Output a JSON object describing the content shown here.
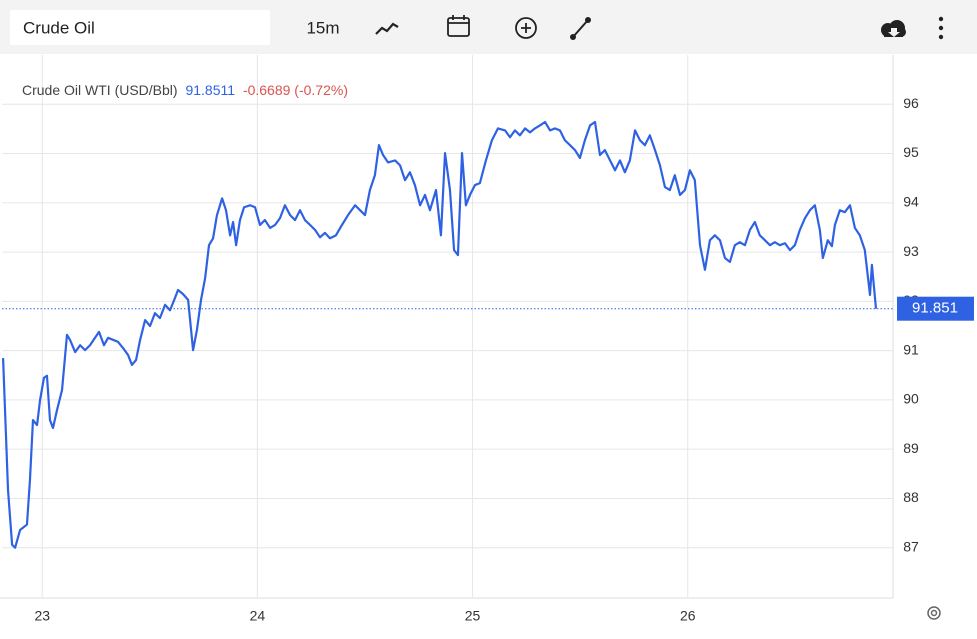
{
  "toolbar": {
    "search": "Crude Oil",
    "interval": "15m"
  },
  "chart_data": {
    "type": "line",
    "title": "Crude Oil WTI (USD/Bbl)",
    "last": 91.8511,
    "change_text": "-0.6689 (-0.72%)",
    "price_label": "91.851",
    "color": "#2f62e3",
    "grid": true,
    "xlim": [
      22.813,
      26.954
    ],
    "xticks": [
      23,
      24,
      25,
      26
    ],
    "ylim": [
      86,
      97
    ],
    "yticks": [
      87,
      88,
      89,
      90,
      91,
      92,
      93,
      94,
      95,
      96
    ],
    "x": [
      22.818,
      22.841,
      22.86,
      22.874,
      22.897,
      22.929,
      22.943,
      22.957,
      22.976,
      22.99,
      23.008,
      23.022,
      23.036,
      23.05,
      23.069,
      23.092,
      23.115,
      23.129,
      23.153,
      23.176,
      23.199,
      23.222,
      23.245,
      23.264,
      23.287,
      23.306,
      23.329,
      23.352,
      23.376,
      23.399,
      23.417,
      23.436,
      23.455,
      23.478,
      23.501,
      23.524,
      23.547,
      23.571,
      23.594,
      23.617,
      23.631,
      23.654,
      23.678,
      23.701,
      23.719,
      23.738,
      23.757,
      23.775,
      23.794,
      23.812,
      23.836,
      23.854,
      23.873,
      23.887,
      23.901,
      23.919,
      23.938,
      23.966,
      23.989,
      24.012,
      24.035,
      24.059,
      24.082,
      24.105,
      24.128,
      24.152,
      24.175,
      24.198,
      24.221,
      24.245,
      24.268,
      24.291,
      24.314,
      24.337,
      24.365,
      24.393,
      24.421,
      24.454,
      24.477,
      24.5,
      24.523,
      24.546,
      24.565,
      24.584,
      24.607,
      24.64,
      24.663,
      24.686,
      24.709,
      24.732,
      24.756,
      24.779,
      24.802,
      24.83,
      24.853,
      24.872,
      24.895,
      24.914,
      24.932,
      24.951,
      24.969,
      24.988,
      25.011,
      25.034,
      25.062,
      25.09,
      25.118,
      25.151,
      25.174,
      25.197,
      25.22,
      25.244,
      25.267,
      25.29,
      25.313,
      25.337,
      25.36,
      25.383,
      25.406,
      25.429,
      25.453,
      25.476,
      25.499,
      25.522,
      25.546,
      25.569,
      25.592,
      25.615,
      25.639,
      25.662,
      25.685,
      25.708,
      25.731,
      25.755,
      25.778,
      25.801,
      25.824,
      25.848,
      25.871,
      25.894,
      25.917,
      25.94,
      25.964,
      25.987,
      26.01,
      26.033,
      26.057,
      26.08,
      26.103,
      26.126,
      26.15,
      26.173,
      26.196,
      26.219,
      26.242,
      26.266,
      26.289,
      26.312,
      26.335,
      26.359,
      26.382,
      26.405,
      26.428,
      26.452,
      26.475,
      26.498,
      26.521,
      26.545,
      26.568,
      26.591,
      26.614,
      26.628,
      26.651,
      26.67,
      26.684,
      26.707,
      26.73,
      26.754,
      26.777,
      26.8,
      26.823,
      26.847,
      26.856,
      26.875
    ],
    "values": [
      90.85,
      88.17,
      87.06,
      87.0,
      87.36,
      87.47,
      88.38,
      89.59,
      89.49,
      90.0,
      90.45,
      90.49,
      89.59,
      89.43,
      89.8,
      90.2,
      91.32,
      91.22,
      90.97,
      91.11,
      91.01,
      91.11,
      91.26,
      91.38,
      91.11,
      91.26,
      91.22,
      91.18,
      91.05,
      90.91,
      90.71,
      90.81,
      91.22,
      91.62,
      91.5,
      91.76,
      91.66,
      91.93,
      91.82,
      92.07,
      92.23,
      92.15,
      92.03,
      91.01,
      91.42,
      92.03,
      92.47,
      93.14,
      93.28,
      93.75,
      94.09,
      93.85,
      93.34,
      93.61,
      93.14,
      93.65,
      93.91,
      93.95,
      93.91,
      93.55,
      93.65,
      93.49,
      93.55,
      93.69,
      93.95,
      93.75,
      93.65,
      93.85,
      93.65,
      93.55,
      93.45,
      93.3,
      93.39,
      93.28,
      93.34,
      93.55,
      93.75,
      93.95,
      93.85,
      93.75,
      94.26,
      94.56,
      95.17,
      94.97,
      94.82,
      94.86,
      94.76,
      94.46,
      94.62,
      94.36,
      93.95,
      94.16,
      93.85,
      94.26,
      93.34,
      95.01,
      94.26,
      93.04,
      92.94,
      95.01,
      93.95,
      94.16,
      94.36,
      94.4,
      94.86,
      95.27,
      95.51,
      95.47,
      95.33,
      95.47,
      95.37,
      95.51,
      95.43,
      95.51,
      95.57,
      95.64,
      95.47,
      95.51,
      95.47,
      95.27,
      95.17,
      95.07,
      94.91,
      95.27,
      95.57,
      95.64,
      94.97,
      95.07,
      94.86,
      94.66,
      94.86,
      94.62,
      94.86,
      95.47,
      95.27,
      95.17,
      95.37,
      95.07,
      94.76,
      94.32,
      94.26,
      94.56,
      94.16,
      94.26,
      94.66,
      94.46,
      93.14,
      92.64,
      93.24,
      93.34,
      93.24,
      92.88,
      92.8,
      93.14,
      93.2,
      93.14,
      93.45,
      93.61,
      93.34,
      93.24,
      93.14,
      93.2,
      93.14,
      93.18,
      93.04,
      93.14,
      93.45,
      93.69,
      93.85,
      93.95,
      93.45,
      92.88,
      93.24,
      93.12,
      93.55,
      93.85,
      93.81,
      93.95,
      93.49,
      93.34,
      93.04,
      92.13,
      92.74,
      91.85
    ]
  }
}
